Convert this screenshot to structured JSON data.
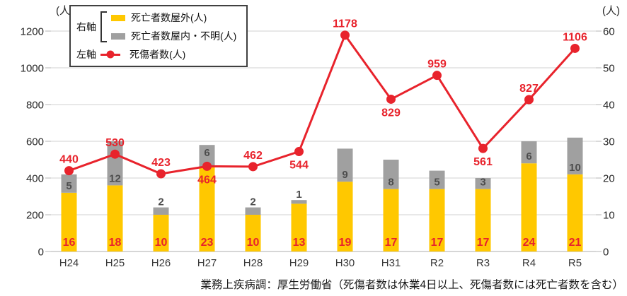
{
  "caption": "業務上疾病調：厚生労働省（死傷者数は休業4日以上、死傷者数には死亡者数を含む）",
  "legend": {
    "right_axis_label": "右軸",
    "left_axis_label": "左軸"
  },
  "chart_data": {
    "type": "bar",
    "subtype": "stacked-bar-with-line-combo",
    "categories": [
      "H24",
      "H25",
      "H26",
      "H27",
      "H28",
      "H29",
      "H30",
      "H31",
      "R2",
      "R3",
      "R4",
      "R5"
    ],
    "series": [
      {
        "name": "死亡者数屋外(人)",
        "type": "bar",
        "axis": "right",
        "color": "#FFC800",
        "label_color": "#E8232C",
        "values": [
          16,
          18,
          10,
          23,
          10,
          13,
          19,
          17,
          17,
          17,
          24,
          21
        ]
      },
      {
        "name": "死亡者数屋内・不明(人)",
        "type": "bar",
        "axis": "right",
        "color": "#A0A0A0",
        "label_color": "#4D4D4D",
        "values": [
          5,
          12,
          2,
          6,
          2,
          1,
          9,
          8,
          5,
          3,
          6,
          10
        ],
        "label_pos": [
          "in",
          "in",
          "above",
          "top",
          "above",
          "above",
          "in",
          "in",
          "in",
          "in",
          "in",
          "in"
        ]
      },
      {
        "name": "死傷者数(人)",
        "type": "line",
        "axis": "left",
        "color": "#E8232C",
        "values": [
          440,
          530,
          423,
          464,
          462,
          544,
          1178,
          829,
          959,
          561,
          827,
          1106
        ],
        "label_pos": [
          "above",
          "above",
          "above",
          "below",
          "above",
          "below",
          "above",
          "below",
          "above",
          "below",
          "above",
          "above"
        ]
      }
    ],
    "left_axis": {
      "unit": "(人)",
      "min": 0,
      "max": 1200,
      "step": 200,
      "ticks": [
        0,
        200,
        400,
        600,
        800,
        1000,
        1200
      ]
    },
    "right_axis": {
      "unit": "(人)",
      "min": 0,
      "max": 60,
      "step": 10,
      "ticks": [
        0,
        10,
        20,
        30,
        40,
        50,
        60
      ]
    },
    "grid": true,
    "legend_position": "top-left",
    "colors": {
      "grid": "#D9D9D9",
      "baseline": "#C8C8C8",
      "tick": "#C0C0C0"
    }
  }
}
